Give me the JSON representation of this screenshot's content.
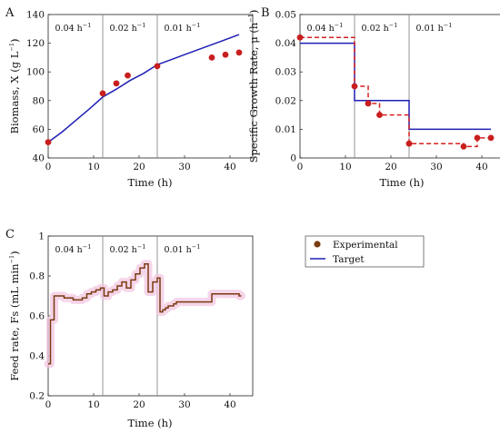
{
  "chart_data": [
    {
      "type": "line",
      "panel_letter": "A",
      "xlabel": "Time (h)",
      "ylabel_main": "Biomass, X (g L",
      "ylabel_sup": "−1",
      "ylabel_end": ")",
      "xlim": [
        0,
        45
      ],
      "ylim": [
        40,
        140
      ],
      "xticks": [
        0,
        10,
        20,
        30,
        40
      ],
      "yticks": [
        40,
        60,
        80,
        100,
        120,
        140
      ],
      "vlines": [
        12,
        24
      ],
      "regions": [
        {
          "label": "0.04 h",
          "sup": "−1",
          "x": 1.5
        },
        {
          "label": "0.02 h",
          "sup": "−1",
          "x": 13.5
        },
        {
          "label": "0.01 h",
          "sup": "−1",
          "x": 25.5
        }
      ],
      "series": [
        {
          "name": "Target",
          "kind": "line",
          "color": "#1f1fb4",
          "x": [
            0,
            3,
            6,
            9,
            12,
            15,
            18,
            21,
            24,
            27,
            30,
            33,
            36,
            39,
            42
          ],
          "y": [
            51,
            58,
            66,
            74,
            82.5,
            88,
            94,
            99,
            105,
            108.5,
            112,
            115.5,
            119,
            122.5,
            126
          ]
        },
        {
          "name": "Experimental",
          "kind": "points",
          "color": "#c81e1e",
          "x": [
            0,
            12,
            15,
            17.5,
            24,
            36,
            39,
            42
          ],
          "y": [
            51,
            85,
            92,
            97.5,
            104,
            110,
            112,
            113.5
          ]
        }
      ]
    },
    {
      "type": "line",
      "panel_letter": "B",
      "xlabel": "Time (h)",
      "ylabel_main": "Specific Growth Rate, μ (h",
      "ylabel_sup": "−1",
      "ylabel_end": ")",
      "xlim": [
        0,
        45
      ],
      "ylim": [
        0,
        0.05
      ],
      "xticks": [
        0,
        10,
        20,
        30,
        40
      ],
      "yticks": [
        0,
        0.01,
        0.02,
        0.03,
        0.04,
        0.05
      ],
      "vlines": [
        12,
        24
      ],
      "regions": [
        {
          "label": "0.04 h",
          "sup": "−1",
          "x": 1.5
        },
        {
          "label": "0.02 h",
          "sup": "−1",
          "x": 13.5
        },
        {
          "label": "0.01 h",
          "sup": "−1",
          "x": 25.5
        }
      ],
      "series": [
        {
          "name": "Target",
          "kind": "step",
          "color": "#1f1fb4",
          "x": [
            0,
            12,
            12,
            24,
            24,
            42
          ],
          "y": [
            0.04,
            0.04,
            0.02,
            0.02,
            0.01,
            0.01
          ]
        },
        {
          "name": "Experimental",
          "kind": "dashed-step",
          "color": "#d62020",
          "x": [
            0,
            12,
            12,
            15,
            15,
            17.5,
            17.5,
            24,
            24,
            36,
            36,
            39,
            39,
            42
          ],
          "y": [
            0.042,
            0.042,
            0.025,
            0.025,
            0.019,
            0.019,
            0.015,
            0.015,
            0.005,
            0.005,
            0.004,
            0.004,
            0.007,
            0.007
          ]
        },
        {
          "name": "Experimental",
          "kind": "points",
          "color": "#c81e1e",
          "x": [
            0,
            12,
            15,
            17.5,
            24,
            36,
            39,
            42
          ],
          "y": [
            0.042,
            0.025,
            0.019,
            0.015,
            0.005,
            0.004,
            0.007,
            0.007
          ]
        }
      ]
    },
    {
      "type": "line",
      "panel_letter": "C",
      "xlabel": "Time (h)",
      "ylabel_main": "Feed rate, Fs (mL min",
      "ylabel_sup": "−1",
      "ylabel_end": ")",
      "xlim": [
        0,
        45
      ],
      "ylim": [
        0.2,
        1.0
      ],
      "xticks": [
        0,
        10,
        20,
        30,
        40
      ],
      "yticks": [
        0.2,
        0.4,
        0.6,
        0.8,
        1.0
      ],
      "vlines": [
        12,
        24
      ],
      "regions": [
        {
          "label": "0.04 h",
          "sup": "−1",
          "x": 1.5
        },
        {
          "label": "0.02 h",
          "sup": "−1",
          "x": 13.5
        },
        {
          "label": "0.01 h",
          "sup": "−1",
          "x": 25.5
        }
      ],
      "series": [
        {
          "name": "Feed rate",
          "kind": "step",
          "color": "#7a3b10",
          "band_color": "#f3c7e2",
          "x": [
            0,
            0.5,
            0.5,
            1.3,
            1.3,
            3.5,
            3.5,
            5.5,
            5.5,
            7.5,
            7.5,
            8.5,
            8.5,
            9.5,
            9.5,
            10.5,
            10.5,
            11.5,
            11.5,
            12.3,
            12.3,
            13.2,
            13.2,
            14.2,
            14.2,
            15.2,
            15.2,
            16.2,
            16.2,
            17.2,
            17.2,
            18.2,
            18.2,
            19.2,
            19.2,
            20.2,
            20.2,
            21.2,
            21.2,
            22.0,
            22.0,
            23.0,
            23.0,
            24.0,
            24.0,
            24.6,
            24.6,
            25.2,
            25.2,
            25.8,
            25.8,
            26.4,
            26.4,
            27.0,
            27.0,
            27.6,
            27.6,
            28.2,
            28.2,
            29.0,
            29.0,
            36.0,
            36.0,
            42.0,
            42.0,
            42.5
          ],
          "y": [
            0.36,
            0.36,
            0.58,
            0.58,
            0.7,
            0.7,
            0.69,
            0.69,
            0.68,
            0.68,
            0.69,
            0.69,
            0.71,
            0.71,
            0.72,
            0.72,
            0.73,
            0.73,
            0.74,
            0.74,
            0.7,
            0.7,
            0.72,
            0.72,
            0.73,
            0.73,
            0.75,
            0.75,
            0.77,
            0.77,
            0.74,
            0.74,
            0.78,
            0.78,
            0.81,
            0.81,
            0.84,
            0.84,
            0.86,
            0.86,
            0.72,
            0.72,
            0.77,
            0.77,
            0.79,
            0.79,
            0.62,
            0.62,
            0.63,
            0.63,
            0.64,
            0.64,
            0.65,
            0.65,
            0.65,
            0.65,
            0.66,
            0.66,
            0.67,
            0.67,
            0.67,
            0.67,
            0.71,
            0.71,
            0.7,
            0.7
          ]
        }
      ]
    }
  ],
  "legend": {
    "items": [
      {
        "label": "Experimental",
        "marker": "dot",
        "color": "#7a3b10"
      },
      {
        "label": "Target",
        "marker": "line",
        "color": "#1f1fb4"
      }
    ]
  }
}
